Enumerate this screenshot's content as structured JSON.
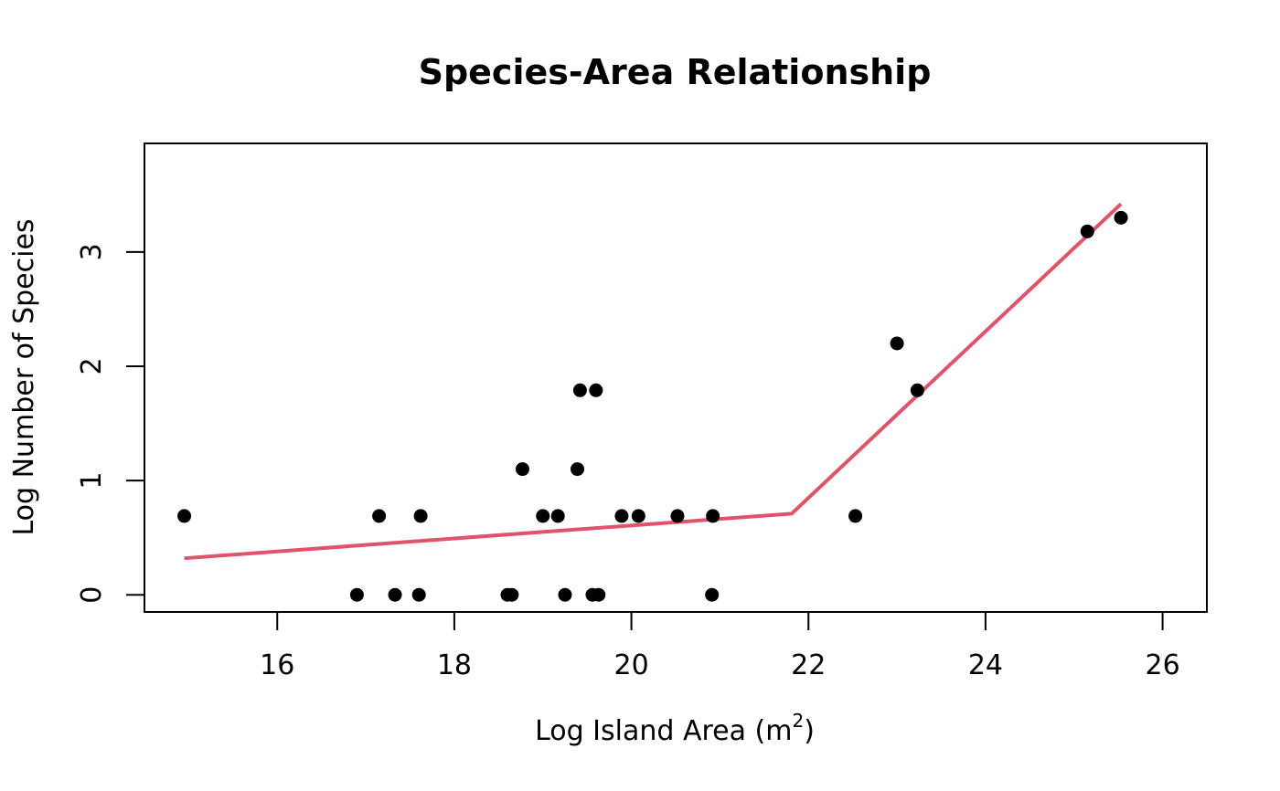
{
  "chart_data": {
    "type": "scatter",
    "title": "Species-Area Relationship",
    "xlabel": "Log Island Area (m",
    "xlabel_superscript": "2",
    "xlabel_close": ")",
    "ylabel": "Log Number of Species",
    "xlim": [
      14.5,
      26.5
    ],
    "ylim": [
      -0.15,
      3.95
    ],
    "xticks": [
      16,
      18,
      20,
      22,
      24,
      26
    ],
    "yticks": [
      0,
      1,
      2,
      3
    ],
    "xtick_labels": [
      "16",
      "18",
      "20",
      "22",
      "24",
      "26"
    ],
    "ytick_labels": [
      "0",
      "1",
      "2",
      "3"
    ],
    "grid": false,
    "legend": "none",
    "point_color": "#000000",
    "line_color": "#DF536B",
    "points": [
      {
        "x": 14.95,
        "y": 0.69
      },
      {
        "x": 16.9,
        "y": 0.0
      },
      {
        "x": 17.15,
        "y": 0.69
      },
      {
        "x": 17.33,
        "y": 0.0
      },
      {
        "x": 17.6,
        "y": 0.0
      },
      {
        "x": 17.62,
        "y": 0.69
      },
      {
        "x": 18.6,
        "y": 0.0
      },
      {
        "x": 18.65,
        "y": 0.0
      },
      {
        "x": 18.77,
        "y": 1.1
      },
      {
        "x": 19.0,
        "y": 0.69
      },
      {
        "x": 19.17,
        "y": 0.69
      },
      {
        "x": 19.25,
        "y": 0.0
      },
      {
        "x": 19.39,
        "y": 1.1
      },
      {
        "x": 19.42,
        "y": 1.79
      },
      {
        "x": 19.56,
        "y": 0.0
      },
      {
        "x": 19.6,
        "y": 1.79
      },
      {
        "x": 19.63,
        "y": 0.0
      },
      {
        "x": 19.89,
        "y": 0.69
      },
      {
        "x": 20.08,
        "y": 0.69
      },
      {
        "x": 20.52,
        "y": 0.69
      },
      {
        "x": 20.91,
        "y": 0.0
      },
      {
        "x": 20.92,
        "y": 0.69
      },
      {
        "x": 22.53,
        "y": 0.69
      },
      {
        "x": 23.0,
        "y": 2.2
      },
      {
        "x": 23.23,
        "y": 1.79
      },
      {
        "x": 25.15,
        "y": 3.18
      },
      {
        "x": 25.53,
        "y": 3.3
      }
    ],
    "fit_line": {
      "x": [
        14.95,
        21.81,
        25.53
      ],
      "y": [
        0.32,
        0.71,
        3.42
      ]
    }
  }
}
